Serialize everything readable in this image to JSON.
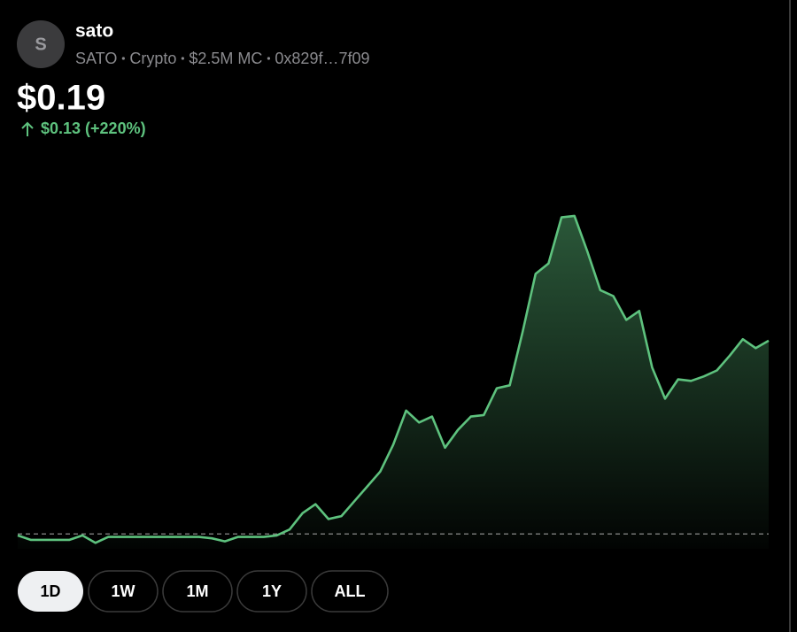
{
  "header": {
    "avatar": "S",
    "name": "sato",
    "meta": [
      "SATO",
      "Crypto",
      "$2.5M MC",
      "0x829f…7f09"
    ],
    "price": "$0.19",
    "change": "$0.13 (+220%)"
  },
  "chart_data": {
    "type": "line",
    "color": "#5ec27e",
    "values": [
      0.059,
      0.056,
      0.056,
      0.056,
      0.056,
      0.059,
      0.054,
      0.058,
      0.058,
      0.058,
      0.058,
      0.058,
      0.058,
      0.058,
      0.058,
      0.057,
      0.055,
      0.058,
      0.058,
      0.058,
      0.059,
      0.063,
      0.074,
      0.08,
      0.07,
      0.072,
      0.082,
      0.092,
      0.102,
      0.12,
      0.143,
      0.135,
      0.139,
      0.118,
      0.13,
      0.139,
      0.14,
      0.158,
      0.16,
      0.196,
      0.235,
      0.242,
      0.273,
      0.274,
      0.25,
      0.224,
      0.22,
      0.204,
      0.21,
      0.172,
      0.151,
      0.164,
      0.163,
      0.166,
      0.17,
      0.18,
      0.191,
      0.185,
      0.19
    ],
    "reference": 0.06,
    "ylim": [
      0.05,
      0.29
    ]
  },
  "ranges": [
    {
      "label": "1D",
      "active": true
    },
    {
      "label": "1W",
      "active": false
    },
    {
      "label": "1M",
      "active": false
    },
    {
      "label": "1Y",
      "active": false
    },
    {
      "label": "ALL",
      "active": false
    }
  ]
}
